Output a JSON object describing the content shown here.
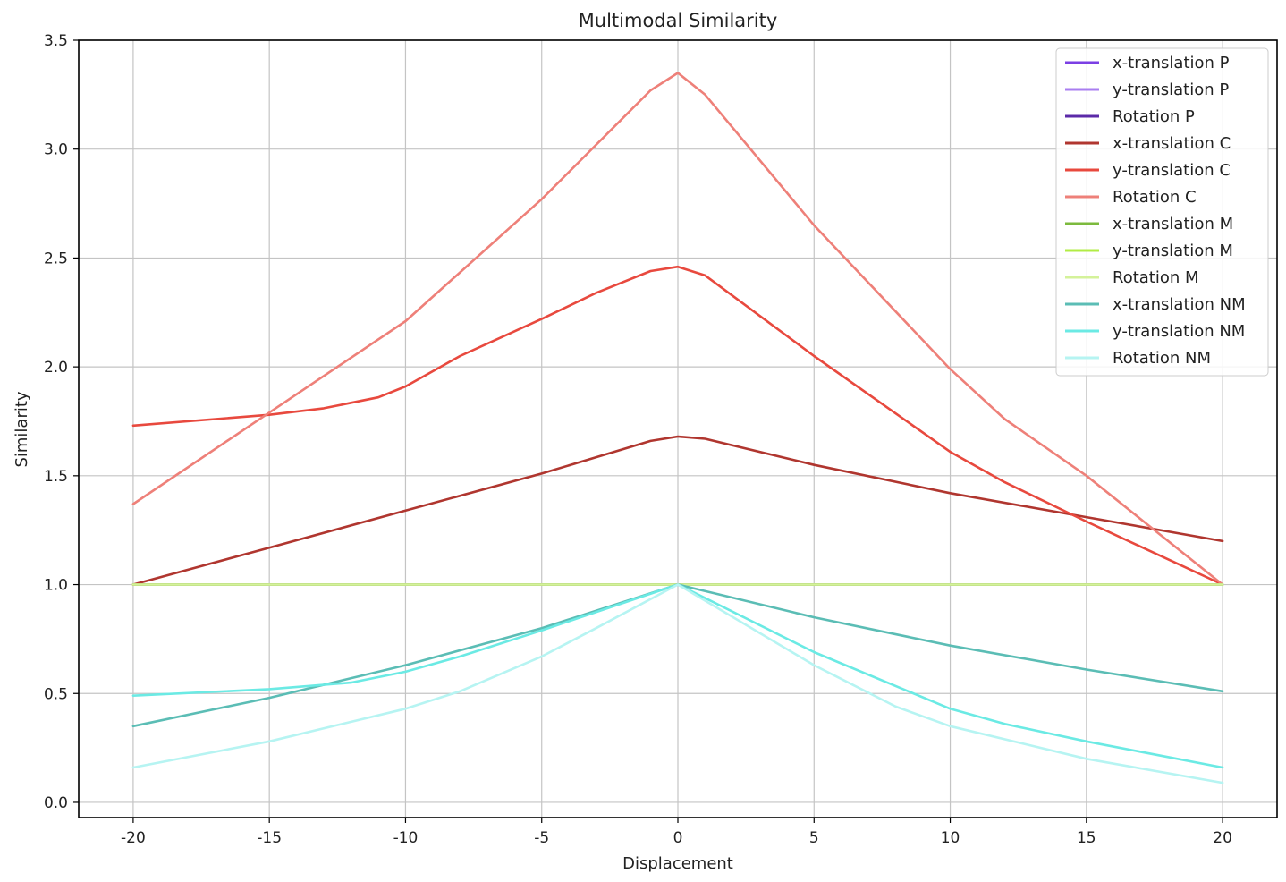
{
  "chart_data": {
    "type": "line",
    "title": "Multimodal Similarity",
    "xlabel": "Displacement",
    "ylabel": "Similarity",
    "xlim": [
      -22,
      22
    ],
    "ylim": [
      -0.07,
      3.5
    ],
    "xticks": [
      -20,
      -15,
      -10,
      -5,
      0,
      5,
      10,
      15,
      20
    ],
    "yticks": [
      0.0,
      0.5,
      1.0,
      1.5,
      2.0,
      2.5,
      3.0,
      3.5
    ],
    "xtick_labels": [
      "-20",
      "-15",
      "-10",
      "-5",
      "0",
      "5",
      "10",
      "15",
      "20"
    ],
    "ytick_labels": [
      "0.0",
      "0.5",
      "1.0",
      "1.5",
      "2.0",
      "2.5",
      "3.0",
      "3.5"
    ],
    "grid": true,
    "legend_position": "top-right",
    "series": [
      {
        "name": "x-translation P",
        "color": "#7b3fe4",
        "x": [
          -20,
          20
        ],
        "y": [
          1.0,
          1.0
        ]
      },
      {
        "name": "y-translation P",
        "color": "#a97ef0",
        "x": [
          -20,
          20
        ],
        "y": [
          1.0,
          1.0
        ]
      },
      {
        "name": "Rotation P",
        "color": "#5b2aa8",
        "x": [
          -20,
          20
        ],
        "y": [
          1.0,
          1.0
        ]
      },
      {
        "name": "x-translation C",
        "color": "#b0362f",
        "x": [
          -20,
          -15,
          -10,
          -5,
          -1,
          0,
          1,
          5,
          10,
          15,
          20
        ],
        "y": [
          1.0,
          1.17,
          1.34,
          1.51,
          1.66,
          1.68,
          1.67,
          1.55,
          1.42,
          1.31,
          1.2
        ]
      },
      {
        "name": "y-translation C",
        "color": "#e8493e",
        "x": [
          -20,
          -15,
          -13,
          -11,
          -10,
          -8,
          -5,
          -3,
          -1,
          0,
          1,
          5,
          10,
          12,
          15,
          20
        ],
        "y": [
          1.73,
          1.78,
          1.81,
          1.86,
          1.91,
          2.05,
          2.22,
          2.34,
          2.44,
          2.46,
          2.42,
          2.05,
          1.61,
          1.47,
          1.29,
          1.0
        ]
      },
      {
        "name": "Rotation C",
        "color": "#ee8079",
        "x": [
          -20,
          -15,
          -10,
          -5,
          -1,
          0,
          1,
          5,
          10,
          12,
          15,
          20
        ],
        "y": [
          1.37,
          1.79,
          2.21,
          2.77,
          3.27,
          3.35,
          3.25,
          2.65,
          1.99,
          1.76,
          1.5,
          1.0
        ]
      },
      {
        "name": "x-translation M",
        "color": "#7cba3d",
        "x": [
          -20,
          20
        ],
        "y": [
          1.0,
          1.0
        ]
      },
      {
        "name": "y-translation M",
        "color": "#b2ec45",
        "x": [
          -20,
          20
        ],
        "y": [
          1.0,
          1.0
        ]
      },
      {
        "name": "Rotation M",
        "color": "#d4f29a",
        "x": [
          -20,
          20
        ],
        "y": [
          1.0,
          1.0
        ]
      },
      {
        "name": "x-translation NM",
        "color": "#5bbdb5",
        "x": [
          -20,
          -15,
          -10,
          -5,
          0,
          5,
          10,
          15,
          20
        ],
        "y": [
          0.35,
          0.48,
          0.63,
          0.8,
          1.0,
          0.85,
          0.72,
          0.61,
          0.51
        ]
      },
      {
        "name": "y-translation NM",
        "color": "#6beae4",
        "x": [
          -20,
          -15,
          -12,
          -10,
          -8,
          -5,
          0,
          5,
          10,
          12,
          15,
          20
        ],
        "y": [
          0.49,
          0.52,
          0.55,
          0.6,
          0.67,
          0.79,
          1.0,
          0.69,
          0.43,
          0.36,
          0.28,
          0.16
        ]
      },
      {
        "name": "Rotation NM",
        "color": "#b6f4f2",
        "x": [
          -20,
          -15,
          -10,
          -8,
          -5,
          -3,
          0,
          5,
          8,
          10,
          15,
          20
        ],
        "y": [
          0.16,
          0.28,
          0.43,
          0.51,
          0.67,
          0.8,
          1.0,
          0.63,
          0.44,
          0.35,
          0.2,
          0.09
        ]
      }
    ]
  }
}
